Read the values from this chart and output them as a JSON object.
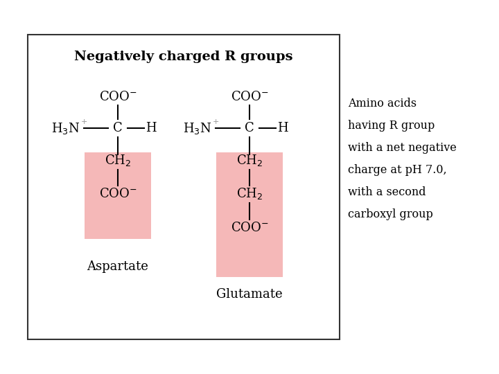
{
  "title": "Negatively charged R groups",
  "bg_color": "#ffffff",
  "box_border": "#333333",
  "pink_color": "#f5b8b8",
  "text_color": "#000000",
  "gray_color": "#999999",
  "side_text": [
    "Amino acids",
    "having R group",
    "with a net negative",
    "charge at pH 7.0,",
    "with a second",
    "carboxyl group"
  ],
  "label1": "Aspartate",
  "label2": "Glutamate",
  "fig_width": 7.2,
  "fig_height": 5.4,
  "dpi": 100
}
